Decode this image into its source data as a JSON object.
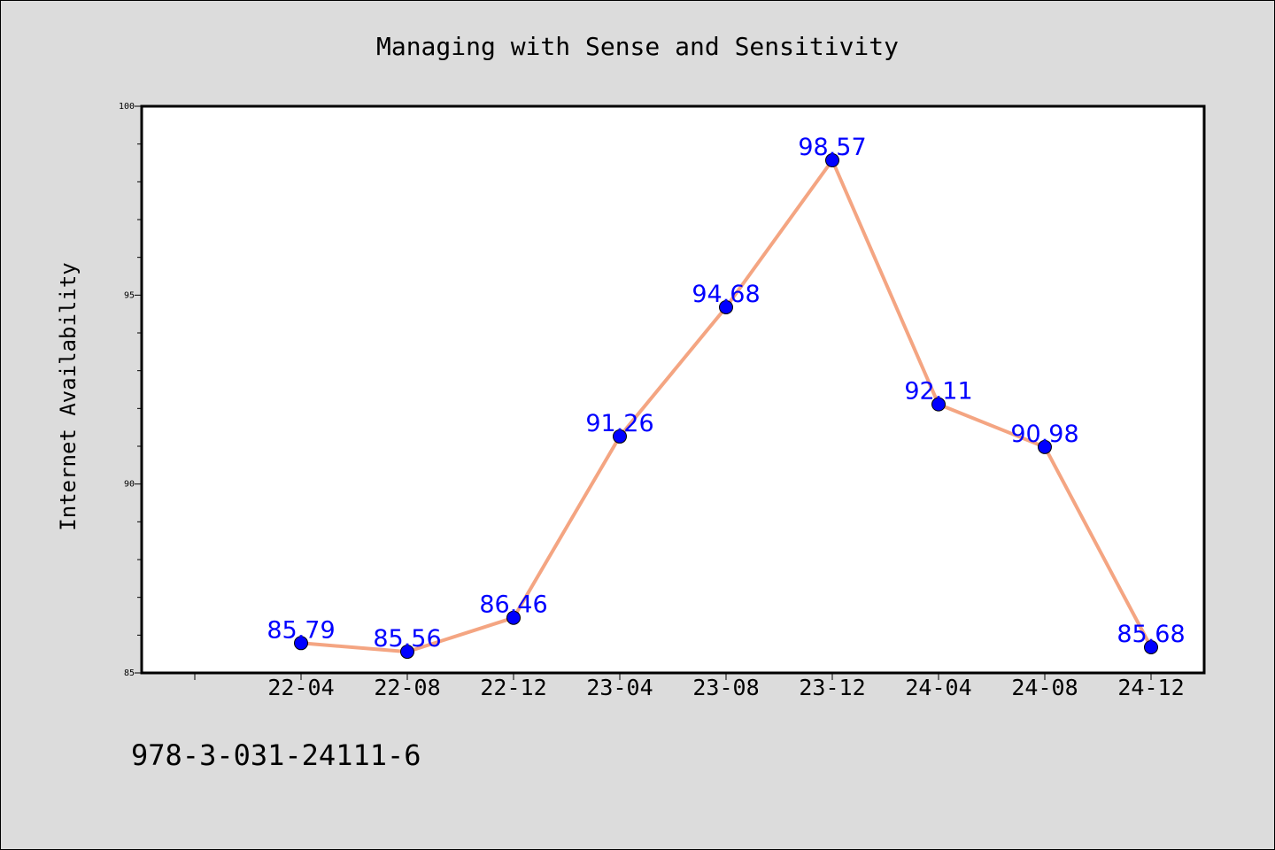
{
  "chart_data": {
    "type": "line",
    "title": "Managing with Sense and Sensitivity",
    "xlabel": "",
    "ylabel": "Internet Availability",
    "categories": [
      "22-04",
      "22-08",
      "22-12",
      "23-04",
      "23-08",
      "23-12",
      "24-04",
      "24-08",
      "24-12"
    ],
    "series": [
      {
        "values": [
          85.79,
          85.56,
          86.46,
          91.26,
          94.68,
          98.57,
          92.11,
          90.98,
          85.68
        ]
      }
    ],
    "data_labels": [
      "85.79",
      "85.56",
      "86.46",
      "91.26",
      "94.68",
      "98.57",
      "92.11",
      "90.98",
      "85.68"
    ],
    "ylim": [
      85,
      100
    ],
    "yticks": [
      "85",
      "90",
      "95",
      "100"
    ],
    "grid": false,
    "legend": "none",
    "line_color": "#f4a582",
    "marker_color": "#0000ff",
    "label_color": "#0000ff"
  },
  "footer_text": "978-3-031-24111-6"
}
